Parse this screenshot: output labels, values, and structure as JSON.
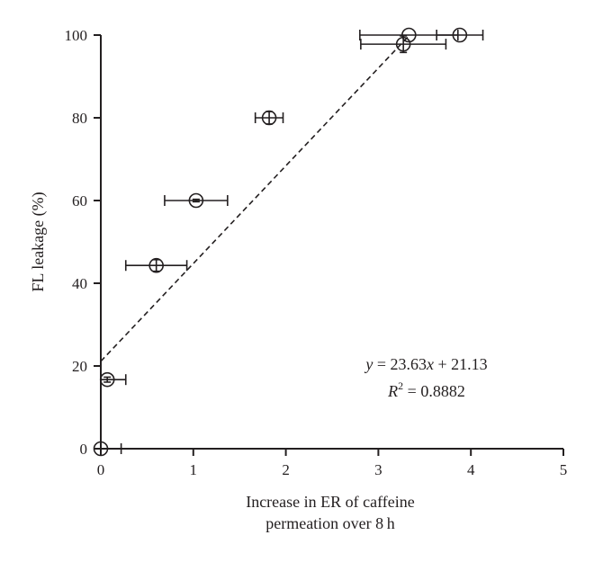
{
  "chart_data": {
    "type": "scatter",
    "xlabel_lines": [
      "Increase in ER of caffeine",
      "permeation over 8 h"
    ],
    "ylabel": "FL leakage (%)",
    "xlim": [
      0,
      5
    ],
    "ylim": [
      0,
      100
    ],
    "xticks": [
      0,
      1,
      2,
      3,
      4,
      5
    ],
    "yticks": [
      0,
      20,
      40,
      60,
      80,
      100
    ],
    "grid": false,
    "points": [
      {
        "x": 0.0,
        "y": 0,
        "xerr": 0.22,
        "yerr": 0
      },
      {
        "x": 0.07,
        "y": 16.7,
        "xerr": 0.2,
        "yerr": 0.6
      },
      {
        "x": 0.6,
        "y": 44.3,
        "xerr": 0.33,
        "yerr": 1.4
      },
      {
        "x": 1.03,
        "y": 60.0,
        "xerr": 0.34,
        "yerr": 0.3
      },
      {
        "x": 1.82,
        "y": 80.0,
        "xerr": 0.15,
        "yerr": 1.5
      },
      {
        "x": 3.27,
        "y": 97.8,
        "xerr": 0.46,
        "yerr": 2.0
      },
      {
        "x": 3.33,
        "y": 100,
        "xerr": 0.53,
        "yerr": 0
      },
      {
        "x": 3.88,
        "y": 100,
        "xerr": 0.25,
        "yerr": 0
      }
    ],
    "fit": {
      "slope": 23.63,
      "intercept": 21.13,
      "x_range": [
        0,
        3.33
      ]
    },
    "annotation": {
      "equation_prefix": "y",
      "equation_rest": " = 23.63",
      "equation_x": "x",
      "equation_tail": " + 21.13",
      "r2_prefix": "R",
      "r2_sup": "2",
      "r2_value": " = 0.8882"
    }
  }
}
